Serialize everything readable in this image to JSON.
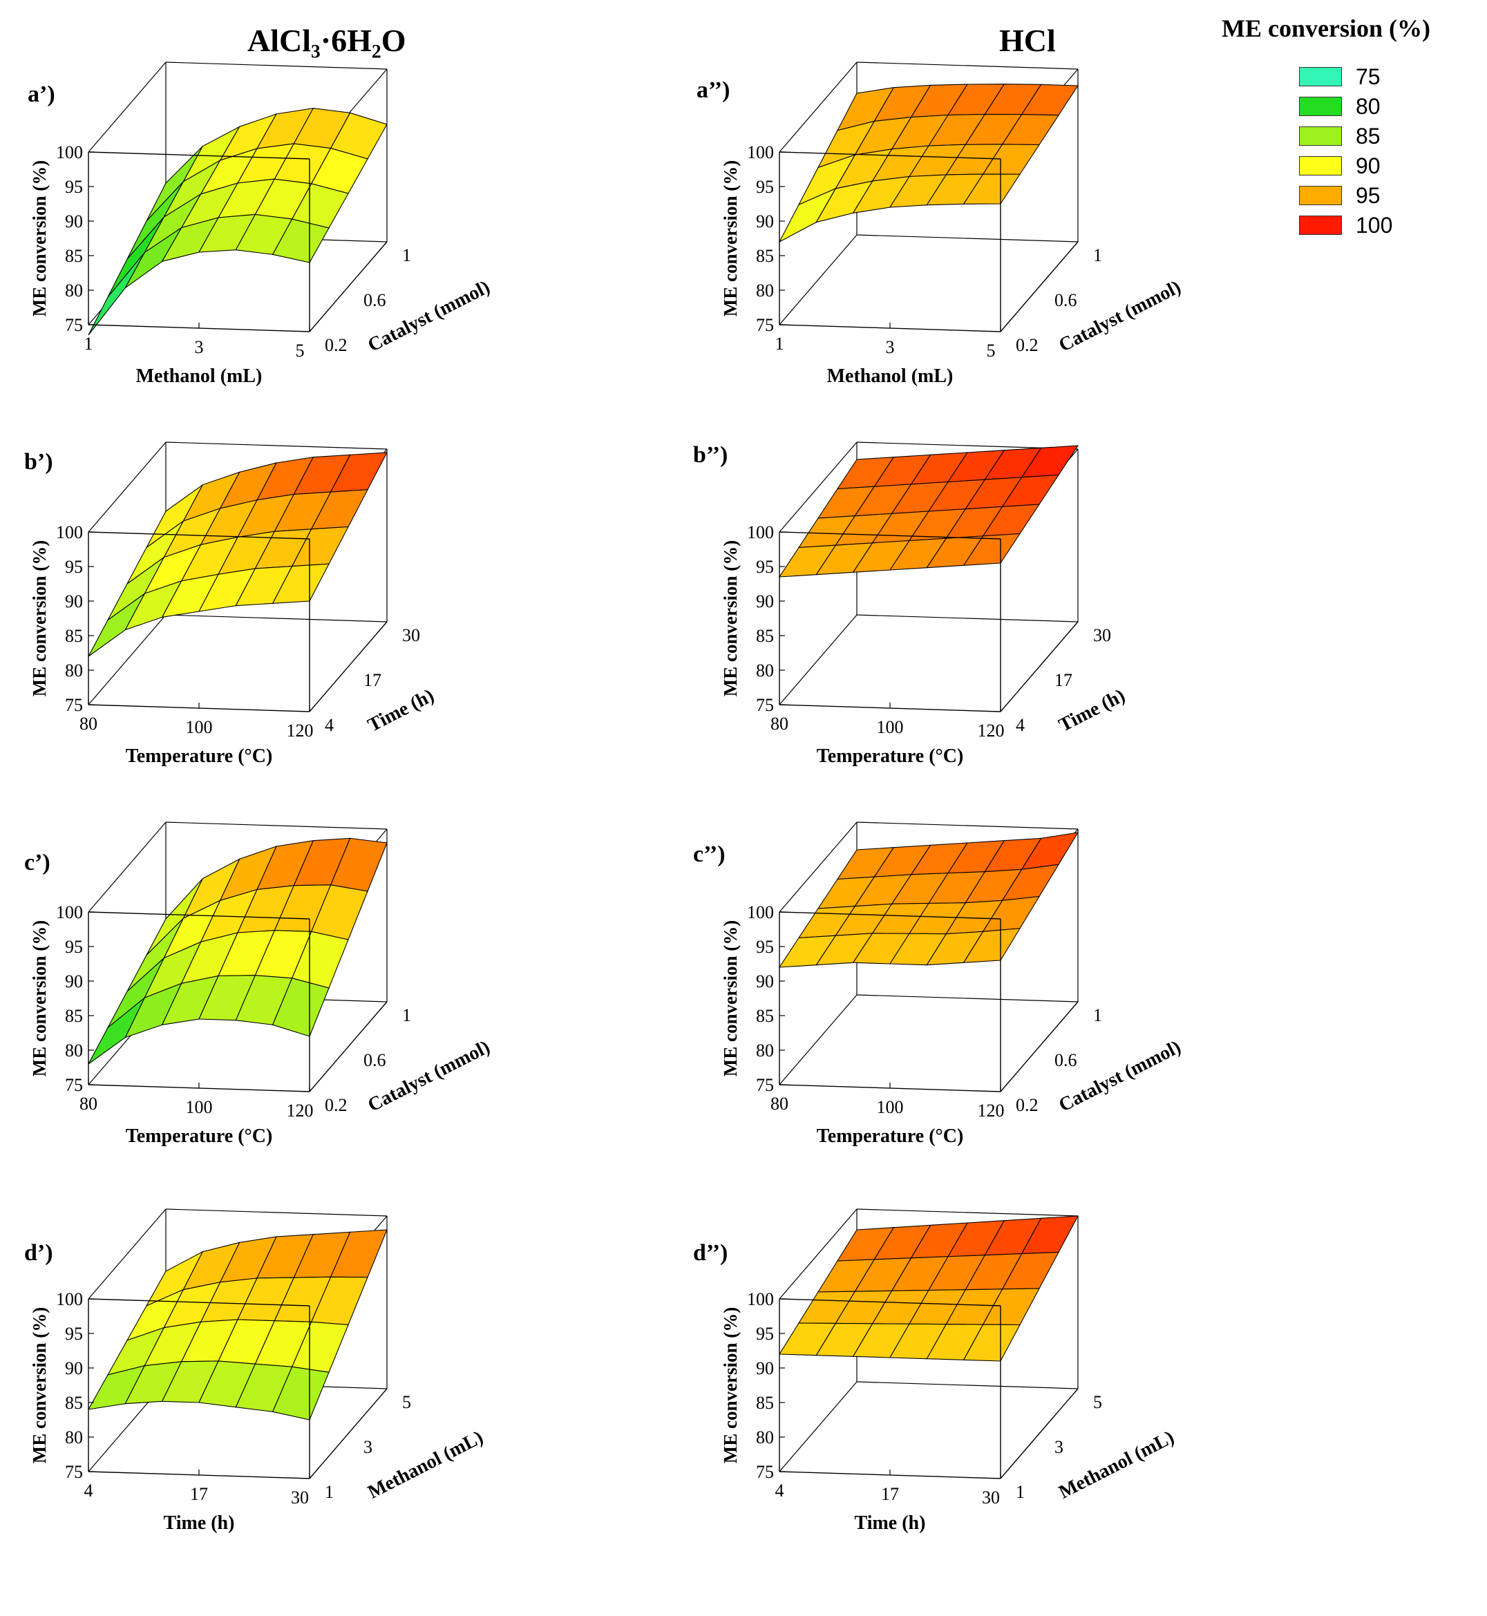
{
  "figure": {
    "left_title": "AlCl₃·6H₂O",
    "right_title": "HCl",
    "legend_title": "ME conversion (%)"
  },
  "legend": [
    {
      "value": "75",
      "color": "#33f5b5"
    },
    {
      "value": "80",
      "color": "#22dd22"
    },
    {
      "value": "85",
      "color": "#9ef01e"
    },
    {
      "value": "90",
      "color": "#ffff1a"
    },
    {
      "value": "95",
      "color": "#ffab00"
    },
    {
      "value": "100",
      "color": "#ff1a00"
    }
  ],
  "chart_data": [
    {
      "id": "a1",
      "label": "a’)",
      "type": "surface3d",
      "catalyst": "AlCl3·6H2O",
      "zlabel": "ME conversion (%)",
      "zlim": [
        75,
        100
      ],
      "zticks": [
        "75",
        "80",
        "85",
        "90",
        "95",
        "100"
      ],
      "xlabel": "Methanol (mL)",
      "xticks": [
        "1",
        "3",
        "5"
      ],
      "ylabel": "Catalyst (mmol)",
      "yticks": [
        "0.2",
        "0.6",
        "1"
      ],
      "z_front": [
        73.5,
        80.5,
        84.5,
        86,
        86.5,
        86,
        85
      ],
      "z_back": [
        82.5,
        88,
        91,
        93,
        94,
        93.5,
        92
      ]
    },
    {
      "id": "a2",
      "label": "a’’)",
      "type": "surface3d",
      "catalyst": "HCl",
      "zlabel": "ME conversion (%)",
      "zlim": [
        75,
        100
      ],
      "zticks": [
        "75",
        "80",
        "85",
        "90",
        "95",
        "100"
      ],
      "xlabel": "Methanol (mL)",
      "xticks": [
        "1",
        "3",
        "5"
      ],
      "ylabel": "Catalyst (mmol)",
      "yticks": [
        "0.2",
        "0.6",
        "1"
      ],
      "z_front": [
        87,
        90,
        91.5,
        92.5,
        93,
        93.3,
        93.5
      ],
      "z_back": [
        95.5,
        96.5,
        97,
        97.3,
        97.5,
        97.6,
        97.6
      ]
    },
    {
      "id": "b1",
      "label": "b’)",
      "type": "surface3d",
      "catalyst": "AlCl3·6H2O",
      "zlabel": "ME conversion (%)",
      "zlim": [
        75,
        100
      ],
      "zticks": [
        "75",
        "80",
        "85",
        "90",
        "95",
        "100"
      ],
      "xlabel": "Temperature (°C)",
      "xticks": [
        "80",
        "100",
        "120"
      ],
      "ylabel": "Time (h)",
      "yticks": [
        "4",
        "17",
        "30"
      ],
      "z_front": [
        82,
        86,
        88,
        89,
        90,
        90.5,
        91
      ],
      "z_back": [
        90,
        94,
        96,
        97.5,
        98.5,
        99,
        99.5
      ]
    },
    {
      "id": "b2",
      "label": "b’’)",
      "type": "surface3d",
      "catalyst": "HCl",
      "zlabel": "ME conversion (%)",
      "zlim": [
        75,
        100
      ],
      "zticks": [
        "75",
        "80",
        "85",
        "90",
        "95",
        "100"
      ],
      "xlabel": "Temperature (°C)",
      "xticks": [
        "80",
        "100",
        "120"
      ],
      "ylabel": "Time (h)",
      "yticks": [
        "4",
        "17",
        "30"
      ],
      "z_front": [
        93.5,
        94,
        94.5,
        95,
        95.5,
        96,
        96.5
      ],
      "z_back": [
        97.5,
        98,
        98.5,
        99,
        99.5,
        100,
        100.5
      ]
    },
    {
      "id": "c1",
      "label": "c’)",
      "type": "surface3d",
      "catalyst": "AlCl3·6H2O",
      "zlabel": "ME conversion (%)",
      "zlim": [
        75,
        100
      ],
      "zticks": [
        "75",
        "80",
        "85",
        "90",
        "95",
        "100"
      ],
      "xlabel": "Temperature (°C)",
      "xticks": [
        "80",
        "100",
        "120"
      ],
      "ylabel": "Catalyst (mmol)",
      "yticks": [
        "0.2",
        "0.6",
        "1"
      ],
      "z_front": [
        78,
        82,
        84,
        85,
        85,
        84.5,
        83
      ],
      "z_back": [
        86,
        92,
        95,
        97,
        98,
        98.5,
        98
      ]
    },
    {
      "id": "c2",
      "label": "c’’)",
      "type": "surface3d",
      "catalyst": "HCl",
      "zlabel": "ME conversion (%)",
      "zlim": [
        75,
        100
      ],
      "zticks": [
        "75",
        "80",
        "85",
        "90",
        "95",
        "100"
      ],
      "xlabel": "Temperature (°C)",
      "xticks": [
        "80",
        "100",
        "120"
      ],
      "ylabel": "Catalyst (mmol)",
      "yticks": [
        "0.2",
        "0.6",
        "1"
      ],
      "z_front": [
        92,
        92.5,
        93,
        93,
        93,
        93.5,
        94
      ],
      "z_back": [
        96,
        96.5,
        97,
        97.5,
        98,
        98.5,
        99.5
      ]
    },
    {
      "id": "d1",
      "label": "d’)",
      "type": "surface3d",
      "catalyst": "AlCl3·6H2O",
      "zlabel": "ME conversion (%)",
      "zlim": [
        75,
        100
      ],
      "zticks": [
        "75",
        "80",
        "85",
        "90",
        "95",
        "100"
      ],
      "xlabel": "Time (h)",
      "xticks": [
        "4",
        "17",
        "30"
      ],
      "ylabel": "Methanol (mL)",
      "yticks": [
        "1",
        "3",
        "5"
      ],
      "z_front": [
        84,
        85,
        85.5,
        85.5,
        85,
        84.5,
        83.5
      ],
      "z_back": [
        91,
        94,
        95.5,
        96.5,
        97,
        97.5,
        98
      ]
    },
    {
      "id": "d2",
      "label": "d’’)",
      "type": "surface3d",
      "catalyst": "HCl",
      "zlabel": "ME conversion (%)",
      "zlim": [
        75,
        100
      ],
      "zticks": [
        "75",
        "80",
        "85",
        "90",
        "95",
        "100"
      ],
      "xlabel": "Time (h)",
      "xticks": [
        "4",
        "17",
        "30"
      ],
      "ylabel": "Methanol (mL)",
      "yticks": [
        "1",
        "3",
        "5"
      ],
      "z_front": [
        92,
        92,
        92,
        92,
        92,
        92,
        92
      ],
      "z_back": [
        97,
        97.5,
        98,
        98.5,
        99,
        99.5,
        100
      ]
    }
  ]
}
